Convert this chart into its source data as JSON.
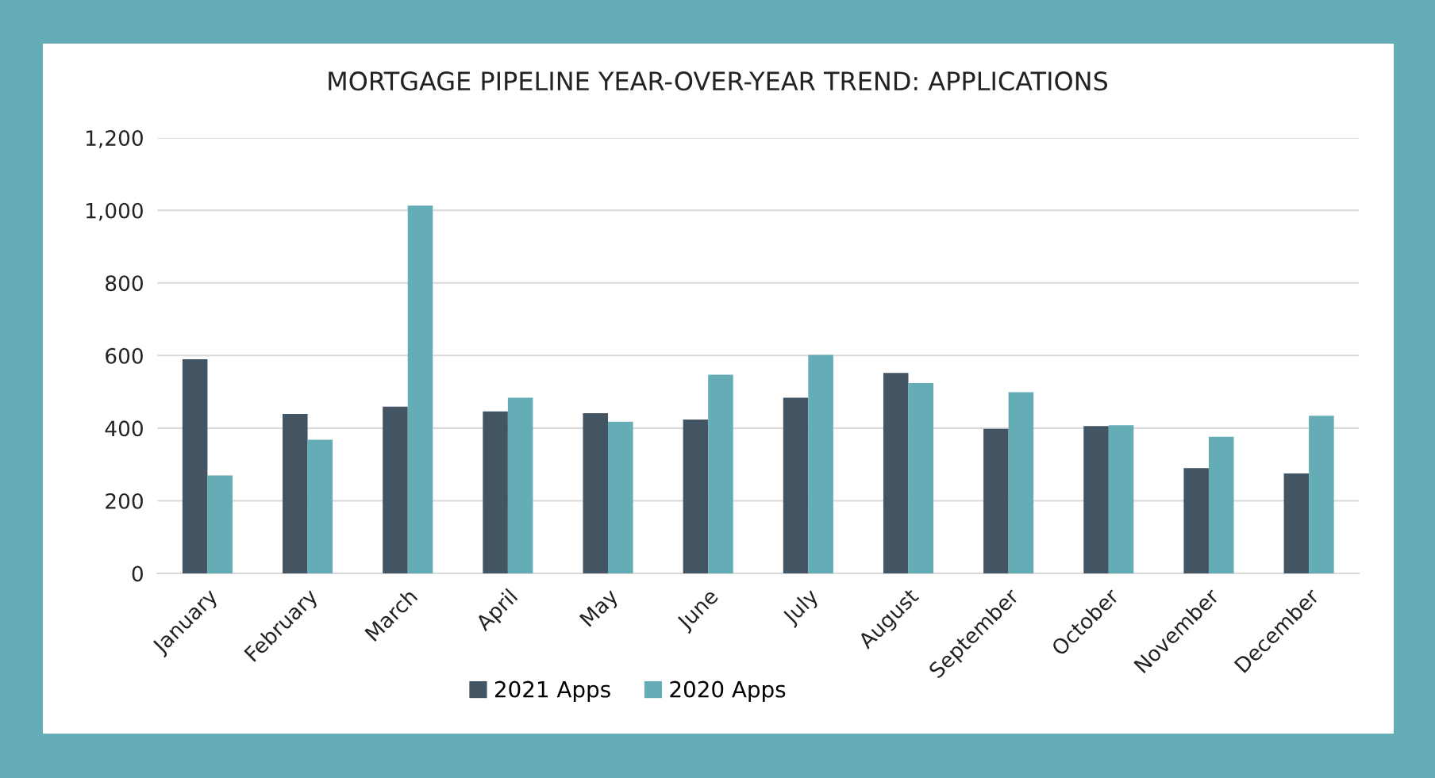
{
  "chart_data": {
    "type": "bar",
    "title": "MORTGAGE PIPELINE YEAR-OVER-YEAR TREND: APPLICATIONS",
    "categories": [
      "January",
      "February",
      "March",
      "April",
      "May",
      "June",
      "July",
      "August",
      "September",
      "October",
      "November",
      "December"
    ],
    "series": [
      {
        "name": "2021 Apps",
        "color": "#435563",
        "values": [
          590,
          439,
          459,
          446,
          441,
          424,
          484,
          552,
          398,
          406,
          290,
          275
        ]
      },
      {
        "name": "2020 Apps",
        "color": "#64adb6",
        "values": [
          270,
          368,
          1013,
          484,
          418,
          547,
          602,
          524,
          499,
          408,
          376,
          434
        ]
      }
    ],
    "ylim": [
      0,
      1200
    ],
    "yticks": [
      {
        "value": 0,
        "label": "0"
      },
      {
        "value": 200,
        "label": "200"
      },
      {
        "value": 400,
        "label": "400"
      },
      {
        "value": 600,
        "label": "600"
      },
      {
        "value": 800,
        "label": "800"
      },
      {
        "value": 1000,
        "label": "1,000"
      },
      {
        "value": 1200,
        "label": "1,200"
      }
    ],
    "grid": "y",
    "legend": "bottom"
  }
}
